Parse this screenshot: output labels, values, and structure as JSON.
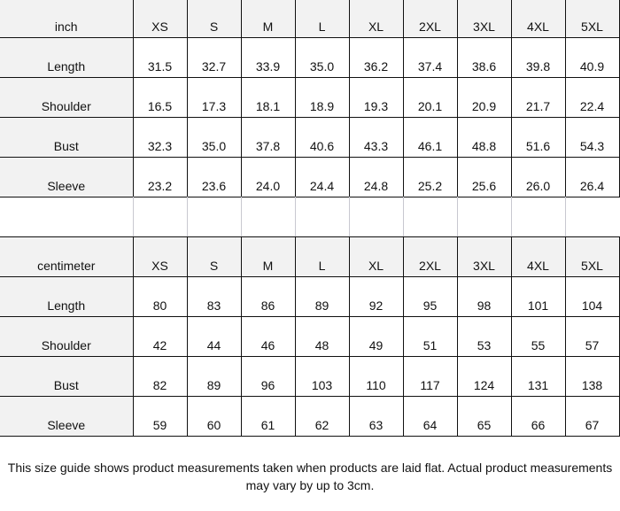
{
  "tables": [
    {
      "unit": "inch",
      "sizes": [
        "XS",
        "S",
        "M",
        "L",
        "XL",
        "2XL",
        "3XL",
        "4XL",
        "5XL"
      ],
      "rows": [
        {
          "label": "Length",
          "values": [
            "31.5",
            "32.7",
            "33.9",
            "35.0",
            "36.2",
            "37.4",
            "38.6",
            "39.8",
            "40.9"
          ]
        },
        {
          "label": "Shoulder",
          "values": [
            "16.5",
            "17.3",
            "18.1",
            "18.9",
            "19.3",
            "20.1",
            "20.9",
            "21.7",
            "22.4"
          ]
        },
        {
          "label": "Bust",
          "values": [
            "32.3",
            "35.0",
            "37.8",
            "40.6",
            "43.3",
            "46.1",
            "48.8",
            "51.6",
            "54.3"
          ]
        },
        {
          "label": "Sleeve",
          "values": [
            "23.2",
            "23.6",
            "24.0",
            "24.4",
            "24.8",
            "25.2",
            "25.6",
            "26.0",
            "26.4"
          ]
        }
      ]
    },
    {
      "unit": "centimeter",
      "sizes": [
        "XS",
        "S",
        "M",
        "L",
        "XL",
        "2XL",
        "3XL",
        "4XL",
        "5XL"
      ],
      "rows": [
        {
          "label": "Length",
          "values": [
            "80",
            "83",
            "86",
            "89",
            "92",
            "95",
            "98",
            "101",
            "104"
          ]
        },
        {
          "label": "Shoulder",
          "values": [
            "42",
            "44",
            "46",
            "48",
            "49",
            "51",
            "53",
            "55",
            "57"
          ]
        },
        {
          "label": "Bust",
          "values": [
            "82",
            "89",
            "96",
            "103",
            "110",
            "117",
            "124",
            "131",
            "138"
          ]
        },
        {
          "label": "Sleeve",
          "values": [
            "59",
            "60",
            "61",
            "62",
            "63",
            "64",
            "65",
            "66",
            "67"
          ]
        }
      ]
    }
  ],
  "note": "This size guide shows product measurements taken when products are laid flat. Actual product measurements may vary by up to 3cm.",
  "colors": {
    "header_bg": "#f2f2f2",
    "border": "#111111"
  }
}
